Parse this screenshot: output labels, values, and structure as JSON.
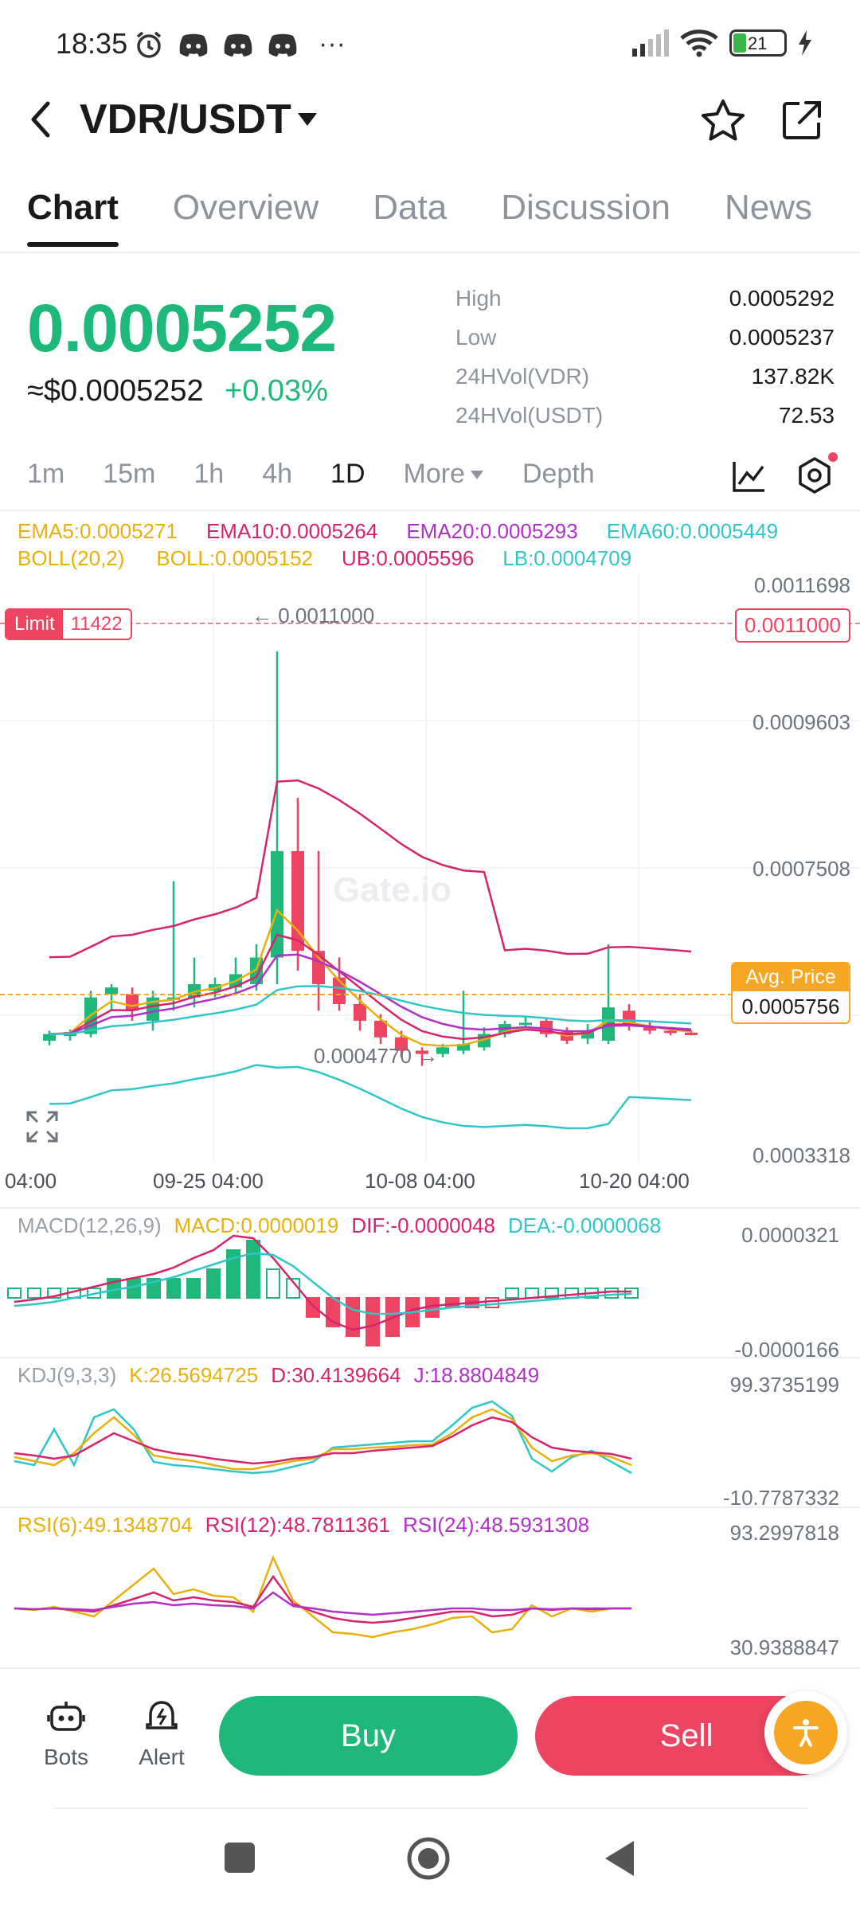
{
  "status": {
    "time": "18:35",
    "battery": "21",
    "more": "···"
  },
  "header": {
    "pair": "VDR/USDT"
  },
  "tabs": [
    "Chart",
    "Overview",
    "Data",
    "Discussion",
    "News"
  ],
  "price": {
    "last": "0.0005252",
    "usd": "≈$0.0005252",
    "change": "+0.03%"
  },
  "stats": [
    {
      "label": "High",
      "value": "0.0005292"
    },
    {
      "label": "Low",
      "value": "0.0005237"
    },
    {
      "label": "24HVol(VDR)",
      "value": "137.82K"
    },
    {
      "label": "24HVol(USDT)",
      "value": "72.53"
    }
  ],
  "intervals": [
    "1m",
    "15m",
    "1h",
    "4h",
    "1D",
    "More",
    "Depth"
  ],
  "ema": {
    "ema5": "EMA5:0.0005271",
    "ema10": "EMA10:0.0005264",
    "ema20": "EMA20:0.0005293",
    "ema60": "EMA60:0.0005449"
  },
  "boll": {
    "name": "BOLL(20,2)",
    "boll": "BOLL:0.0005152",
    "ub": "UB:0.0005596",
    "lb": "LB:0.0004709"
  },
  "main_chart": {
    "y_ticks": [
      "0.0011698",
      "0.0009603",
      "0.0007508",
      "0.0003318"
    ],
    "x_ticks": [
      "04:00",
      "09-25 04:00",
      "10-08 04:00",
      "10-20 04:00"
    ],
    "limit_label": "Limit",
    "limit_qty": "11422",
    "limit_price": "0.0011000",
    "high_marker": "← 0.0011000",
    "low_marker": "0.0004770 →",
    "avg_label": "Avg. Price",
    "avg_price": "0.0005756",
    "watermark": "Gate.io"
  },
  "macd": {
    "name": "MACD(12,26,9)",
    "macd": "MACD:0.0000019",
    "dif": "DIF:-0.0000048",
    "dea": "DEA:-0.0000068",
    "top": "0.0000321",
    "bottom": "-0.0000166"
  },
  "kdj": {
    "name": "KDJ(9,3,3)",
    "k": "K:26.5694725",
    "d": "D:30.4139664",
    "j": "J:18.8804849",
    "top": "99.3735199",
    "bottom": "-10.7787332"
  },
  "rsi": {
    "r6": "RSI(6):49.1348704",
    "r12": "RSI(12):48.7811361",
    "r24": "RSI(24):48.5931308",
    "top": "93.2997818",
    "bottom": "30.9388847"
  },
  "bottom": {
    "bots": "Bots",
    "alert": "Alert",
    "buy": "Buy",
    "sell": "Sell"
  },
  "colors": {
    "up": "#1db87a",
    "down": "#ec4461",
    "gold": "#e8b00b",
    "pink": "#d6246c",
    "purple": "#b030c8",
    "cyan": "#2fc6c8"
  },
  "chart_data": {
    "type": "candlestick",
    "title": "VDR/USDT 1D",
    "candles": [
      {
        "o": 0.000515,
        "h": 0.00053,
        "l": 0.000508,
        "c": 0.000525
      },
      {
        "o": 0.000522,
        "h": 0.000532,
        "l": 0.000515,
        "c": 0.000528
      },
      {
        "o": 0.000525,
        "h": 0.00059,
        "l": 0.00052,
        "c": 0.00058
      },
      {
        "o": 0.000585,
        "h": 0.0006,
        "l": 0.00056,
        "c": 0.000595
      },
      {
        "o": 0.000585,
        "h": 0.000595,
        "l": 0.000545,
        "c": 0.00056
      },
      {
        "o": 0.000545,
        "h": 0.00059,
        "l": 0.00053,
        "c": 0.00058
      },
      {
        "o": 0.00058,
        "h": 0.000755,
        "l": 0.00056,
        "c": 0.00058
      },
      {
        "o": 0.00058,
        "h": 0.00064,
        "l": 0.000565,
        "c": 0.0006
      },
      {
        "o": 0.00059,
        "h": 0.00061,
        "l": 0.00058,
        "c": 0.0006
      },
      {
        "o": 0.000595,
        "h": 0.00064,
        "l": 0.000585,
        "c": 0.000615
      },
      {
        "o": 0.0006,
        "h": 0.00066,
        "l": 0.00059,
        "c": 0.00064
      },
      {
        "o": 0.00064,
        "h": 0.0011,
        "l": 0.0006,
        "c": 0.0008
      },
      {
        "o": 0.0008,
        "h": 0.00088,
        "l": 0.00062,
        "c": 0.00065
      },
      {
        "o": 0.00065,
        "h": 0.0008,
        "l": 0.00056,
        "c": 0.0006
      },
      {
        "o": 0.00061,
        "h": 0.00064,
        "l": 0.00056,
        "c": 0.00057
      },
      {
        "o": 0.00057,
        "h": 0.000585,
        "l": 0.00053,
        "c": 0.000545
      },
      {
        "o": 0.000545,
        "h": 0.000555,
        "l": 0.00051,
        "c": 0.00052
      },
      {
        "o": 0.00052,
        "h": 0.00053,
        "l": 0.00049,
        "c": 0.0005
      },
      {
        "o": 0.0005,
        "h": 0.000505,
        "l": 0.000477,
        "c": 0.000495
      },
      {
        "o": 0.000495,
        "h": 0.00051,
        "l": 0.00049,
        "c": 0.000505
      },
      {
        "o": 0.0005,
        "h": 0.00059,
        "l": 0.000495,
        "c": 0.00051
      },
      {
        "o": 0.000505,
        "h": 0.000535,
        "l": 0.0005,
        "c": 0.000525
      },
      {
        "o": 0.000525,
        "h": 0.000545,
        "l": 0.00052,
        "c": 0.00054
      },
      {
        "o": 0.00054,
        "h": 0.00055,
        "l": 0.000535,
        "c": 0.000542
      },
      {
        "o": 0.000545,
        "h": 0.000548,
        "l": 0.00052,
        "c": 0.000525
      },
      {
        "o": 0.000528,
        "h": 0.000535,
        "l": 0.00051,
        "c": 0.000515
      },
      {
        "o": 0.000518,
        "h": 0.00054,
        "l": 0.00051,
        "c": 0.00053
      },
      {
        "o": 0.000515,
        "h": 0.00066,
        "l": 0.00051,
        "c": 0.000565
      },
      {
        "o": 0.00056,
        "h": 0.00057,
        "l": 0.00053,
        "c": 0.00054
      },
      {
        "o": 0.000535,
        "h": 0.000545,
        "l": 0.000525,
        "c": 0.00053
      },
      {
        "o": 0.00053,
        "h": 0.000535,
        "l": 0.000523,
        "c": 0.000527
      },
      {
        "o": 0.000527,
        "h": 0.00053,
        "l": 0.000523,
        "c": 0.000525
      }
    ],
    "ylim": [
      0.0003318,
      0.0011698
    ]
  }
}
